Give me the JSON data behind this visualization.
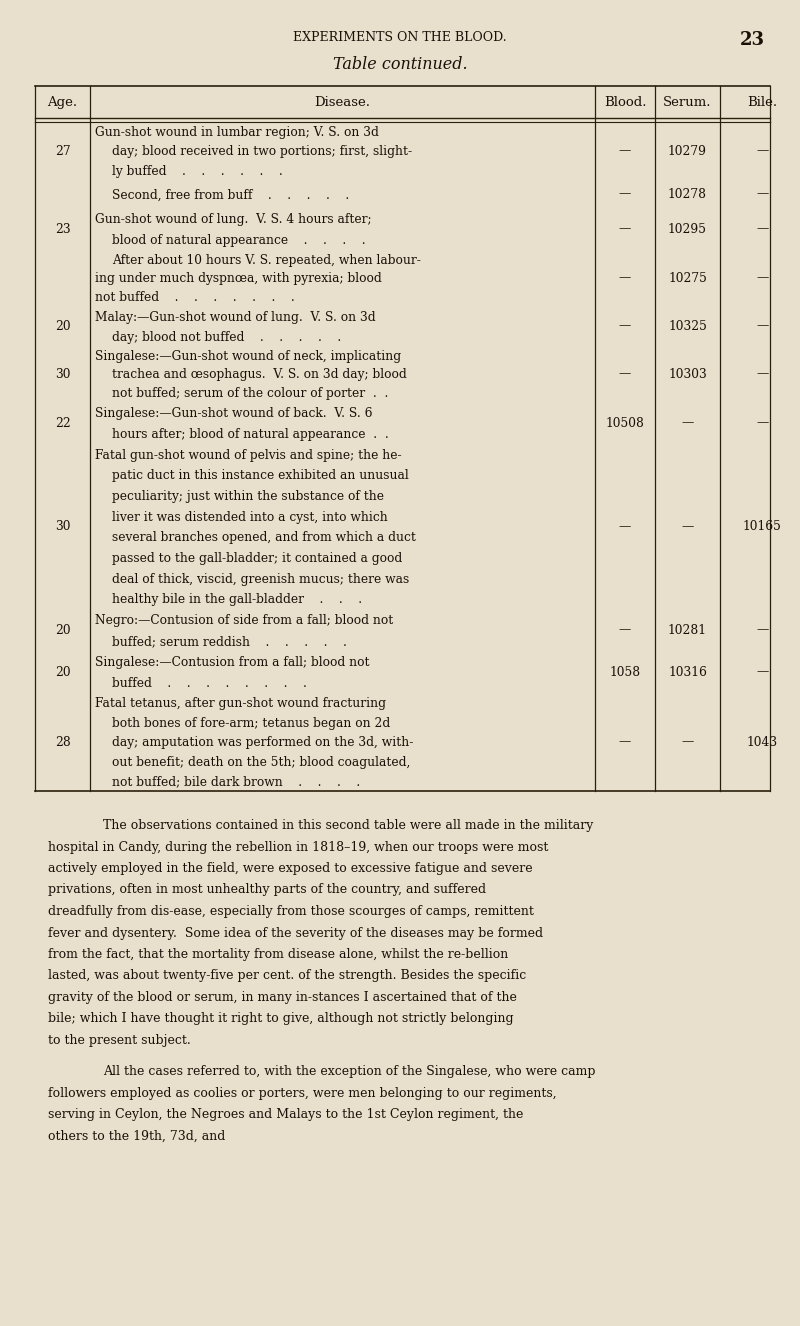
{
  "bg_color": "#e8e0cc",
  "header_title": "EXPERIMENTS ON THE BLOOD.",
  "page_number": "23",
  "table_title": "Table continued.",
  "col_headers": [
    "Age.",
    "Disease.",
    "Blood.",
    "Serum.",
    "Bile."
  ],
  "rows": [
    {
      "age": "27",
      "disease": "Gun-shot wound in lumbar region; V. S. on 3d\nday; blood received in two portions; first, slight-\nly buffed    .    .    .    .    .    .",
      "blood": "—",
      "serum": "10279",
      "bile": "—"
    },
    {
      "age": "",
      "disease": "Second, free from buff    .    .    .    .    .",
      "blood": "—",
      "serum": "10278",
      "bile": "—"
    },
    {
      "age": "23",
      "disease": "Gun-shot wound of lung.  V. S. 4 hours after;\nblood of natural appearance    .    .    .    .",
      "blood": "—",
      "serum": "10295",
      "bile": "—"
    },
    {
      "age": "",
      "disease": "After about 10 hours V. S. repeated, when labour-\ning under much dyspnœa, with pyrexia; blood\nnot buffed    .    .    .    .    .    .    .",
      "blood": "—",
      "serum": "10275",
      "bile": "—"
    },
    {
      "age": "20",
      "disease": "Malay:—Gun-shot wound of lung.  V. S. on 3d\nday; blood not buffed    .    .    .    .    .",
      "blood": "—",
      "serum": "10325",
      "bile": "—"
    },
    {
      "age": "30",
      "disease": "Singalese:—Gun-shot wound of neck, implicating\ntrachea and œsophagus.  V. S. on 3d day; blood\nnot buffed; serum of the colour of porter  .  .",
      "blood": "—",
      "serum": "10303",
      "bile": "—"
    },
    {
      "age": "22",
      "disease": "Singalese:—Gun-shot wound of back.  V. S. 6\nhours after; blood of natural appearance  .  .",
      "blood": "10508",
      "serum": "—",
      "bile": "—"
    },
    {
      "age": "30",
      "disease": "Fatal gun-shot wound of pelvis and spine; the he-\npatic duct in this instance exhibited an unusual\npeculiarity; just within the substance of the\nliver it was distended into a cyst, into which\nseveral branches opened, and from which a duct\npassed to the gall-bladder; it contained a good\ndeal of thick, viscid, greenish mucus; there was\nhealthy bile in the gall-bladder    .    .    .",
      "blood": "—",
      "serum": "—",
      "bile": "10165"
    },
    {
      "age": "20",
      "disease": "Negro:—Contusion of side from a fall; blood not\nbuffed; serum reddish    .    .    .    .    .",
      "blood": "—",
      "serum": "10281",
      "bile": "—"
    },
    {
      "age": "20",
      "disease": "Singalese:—Contusion from a fall; blood not\nbuffed    .    .    .    .    .    .    .    .",
      "blood": "1058",
      "serum": "10316",
      "bile": "—"
    },
    {
      "age": "28",
      "disease": "Fatal tetanus, after gun-shot wound fracturing\nboth bones of fore-arm; tetanus began on 2d\nday; amputation was performed on the 3d, with-\nout benefit; death on the 5th; blood coagulated,\nnot buffed; bile dark brown    .    .    .    .",
      "blood": "—",
      "serum": "—",
      "bile": "1043"
    }
  ],
  "footer_paragraphs": [
    "The observations contained in this second table were all made in the military hospital in Candy, during the rebellion in 1818–19, when our troops were most actively employed in the field, were exposed to excessive fatigue and severe privations, often in most unhealthy parts of the country, and suffered dreadfully from dis-ease, especially from those scourges of camps, remittent fever and dysentery.  Some idea of the severity of the diseases may be formed from the fact, that the mortality from disease alone, whilst the re-bellion lasted, was about twenty-five per cent. of the strength. Besides the specific gravity of the blood or serum, in many in-stances I ascertained that of the bile; which I have thought it right to give, although not strictly belonging to the present subject.",
    "All the cases referred to, with the exception of the Singalese, who were camp followers employed as coolies or porters, were men belonging to our regiments, serving in Ceylon, the Negroes and Malays to the 1st Ceylon regiment, the others to the 19th, 73d, and"
  ],
  "text_color": "#1a1008",
  "line_color": "#2a1f0a"
}
